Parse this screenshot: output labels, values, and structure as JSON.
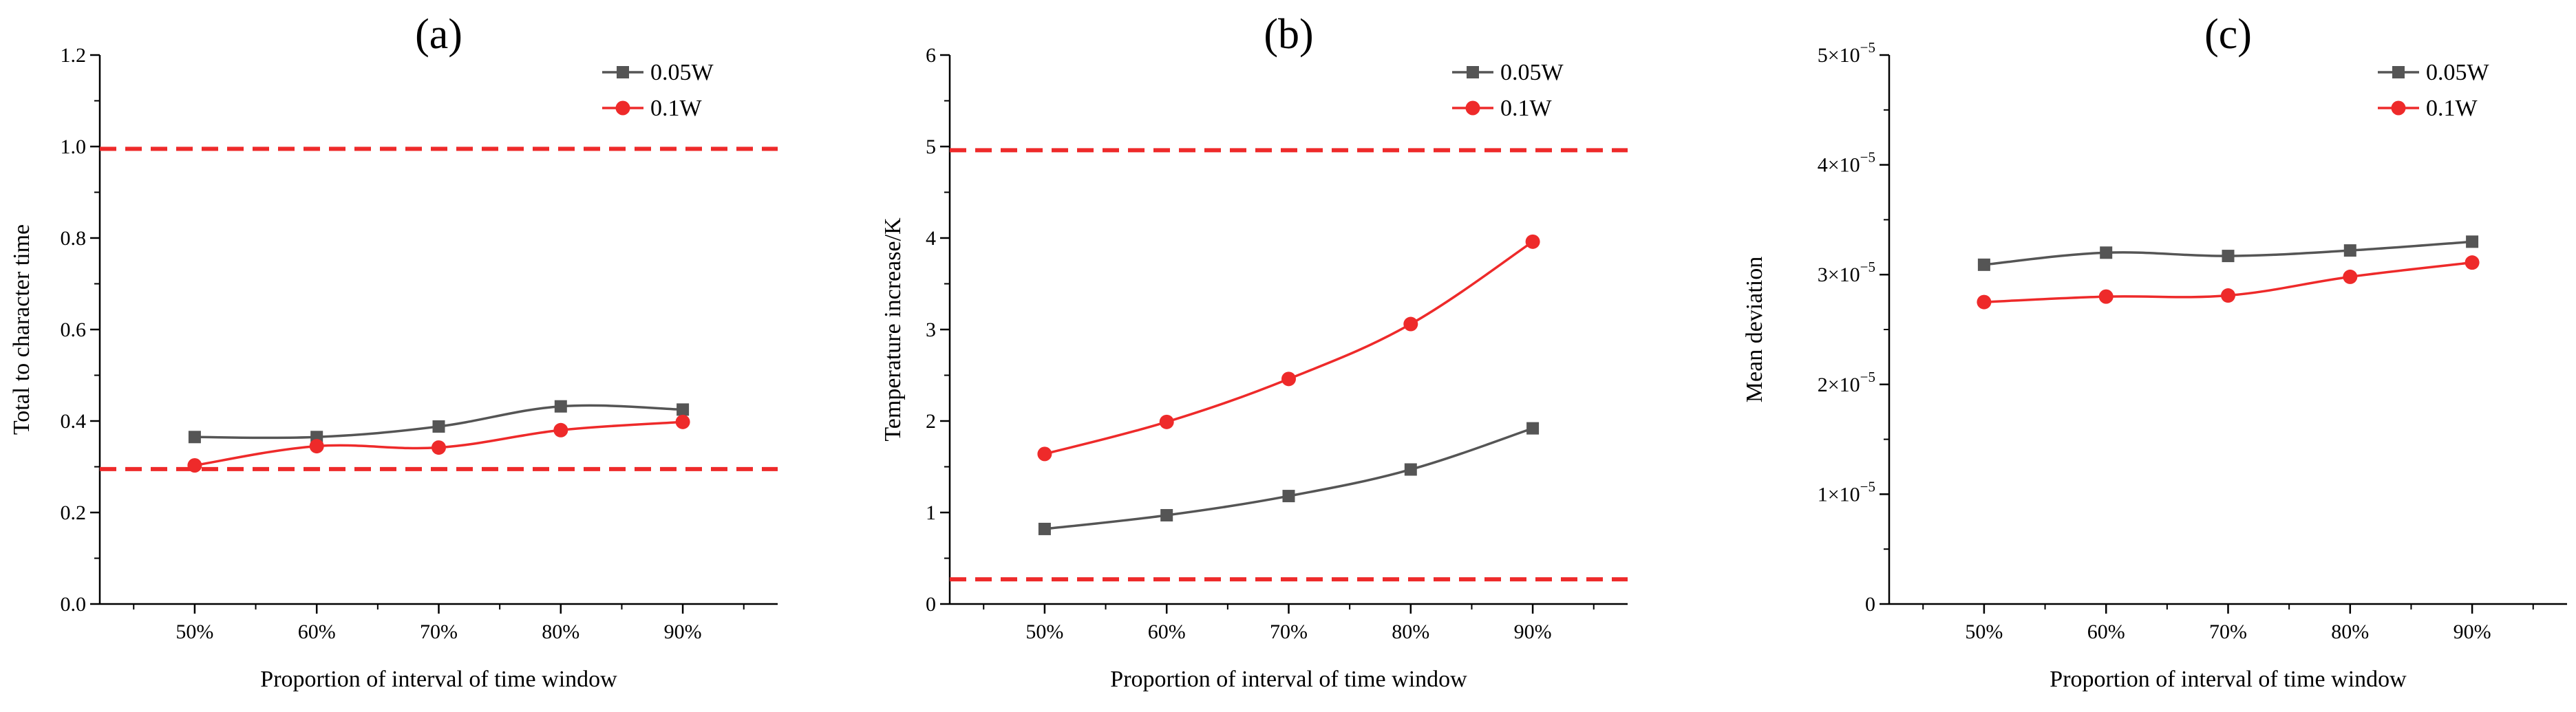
{
  "chart_data": [
    {
      "type": "line",
      "title": "(a)",
      "xlabel": "Proportion of interval of time window",
      "ylabel": "Total to character time",
      "categories": [
        "50%",
        "60%",
        "70%",
        "80%",
        "90%"
      ],
      "ylim": [
        0,
        1.2
      ],
      "yticks": [
        0,
        0.2,
        0.4,
        0.6,
        0.8,
        1.0,
        1.2
      ],
      "ytick_labels": [
        "0.0",
        "0.2",
        "0.4",
        "0.6",
        "0.8",
        "1.0",
        "1.2"
      ],
      "series": [
        {
          "name": "0.05W",
          "color": "#555555",
          "marker": "square",
          "values": [
            0.365,
            0.365,
            0.388,
            0.432,
            0.425
          ]
        },
        {
          "name": "0.1W",
          "color": "#ee2a2a",
          "marker": "circle",
          "values": [
            0.303,
            0.345,
            0.342,
            0.38,
            0.398
          ]
        }
      ],
      "reference_lines": [
        {
          "y": 0.995,
          "color": "#ee2a2a"
        },
        {
          "y": 0.295,
          "color": "#ee2a2a"
        }
      ],
      "legend_position": "top-right"
    },
    {
      "type": "line",
      "title": "(b)",
      "xlabel": "Proportion of interval of time window",
      "ylabel": "Temperature increase/K",
      "categories": [
        "50%",
        "60%",
        "70%",
        "80%",
        "90%"
      ],
      "ylim": [
        0,
        6
      ],
      "yticks": [
        0,
        1,
        2,
        3,
        4,
        5,
        6
      ],
      "ytick_labels": [
        "0",
        "1",
        "2",
        "3",
        "4",
        "5",
        "6"
      ],
      "series": [
        {
          "name": "0.05W",
          "color": "#555555",
          "marker": "square",
          "values": [
            0.82,
            0.97,
            1.18,
            1.47,
            1.92
          ]
        },
        {
          "name": "0.1W",
          "color": "#ee2a2a",
          "marker": "circle",
          "values": [
            1.64,
            1.99,
            2.46,
            3.06,
            3.96
          ]
        }
      ],
      "reference_lines": [
        {
          "y": 4.96,
          "color": "#ee2a2a"
        },
        {
          "y": 0.27,
          "color": "#ee2a2a"
        }
      ],
      "legend_position": "top-right"
    },
    {
      "type": "line",
      "title": "(c)",
      "xlabel": "Proportion of interval of time window",
      "ylabel": "Mean deviation",
      "categories": [
        "50%",
        "60%",
        "70%",
        "80%",
        "90%"
      ],
      "ylim": [
        0,
        5e-05
      ],
      "yticks": [
        0,
        1e-05,
        2e-05,
        3e-05,
        4e-05,
        5e-05
      ],
      "ytick_labels": [
        {
          "mantissa": "0",
          "exponent": ""
        },
        {
          "mantissa": "1×10",
          "exponent": "−5"
        },
        {
          "mantissa": "2×10",
          "exponent": "−5"
        },
        {
          "mantissa": "3×10",
          "exponent": "−5"
        },
        {
          "mantissa": "4×10",
          "exponent": "−5"
        },
        {
          "mantissa": "5×10",
          "exponent": "−5"
        }
      ],
      "series": [
        {
          "name": "0.05W",
          "color": "#555555",
          "marker": "square",
          "values": [
            3.09e-05,
            3.2e-05,
            3.17e-05,
            3.22e-05,
            3.3e-05
          ]
        },
        {
          "name": "0.1W",
          "color": "#ee2a2a",
          "marker": "circle",
          "values": [
            2.75e-05,
            2.8e-05,
            2.81e-05,
            2.98e-05,
            3.11e-05
          ]
        }
      ],
      "reference_lines": [],
      "legend_position": "top-right"
    }
  ]
}
